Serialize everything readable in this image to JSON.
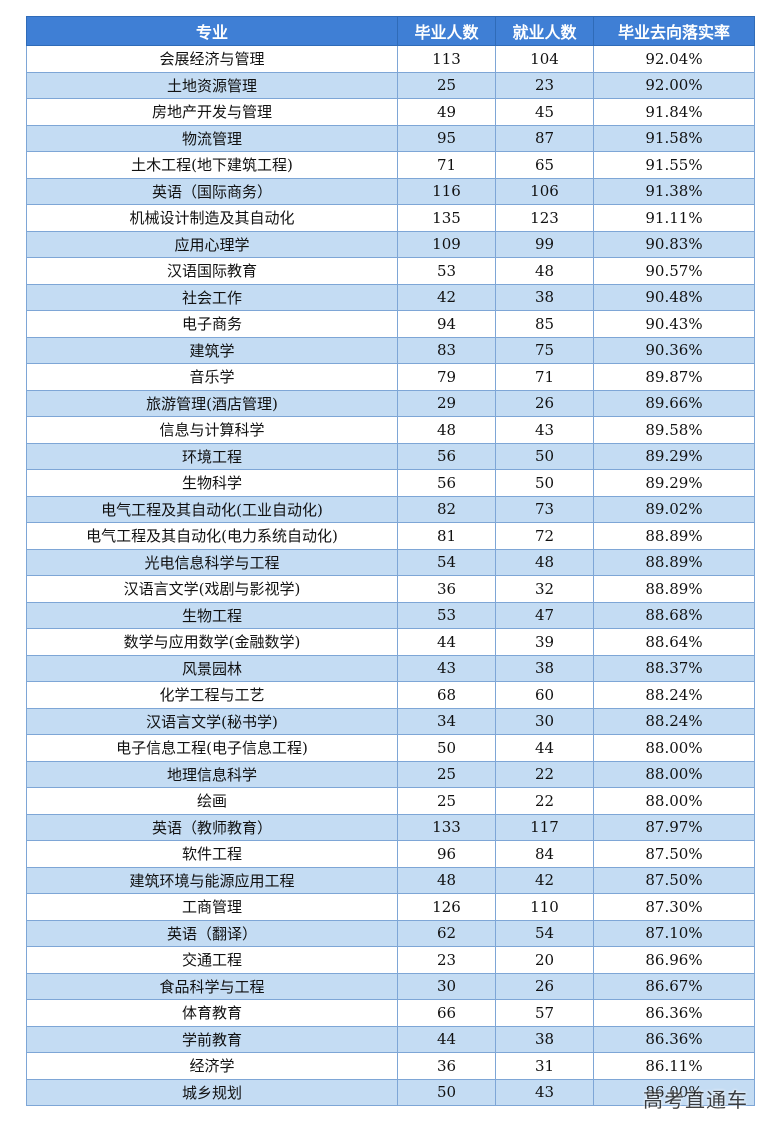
{
  "table": {
    "headers": [
      "专业",
      "毕业人数",
      "就业人数",
      "毕业去向落实率"
    ],
    "rows": [
      [
        "会展经济与管理",
        "113",
        "104",
        "92.04%"
      ],
      [
        "土地资源管理",
        "25",
        "23",
        "92.00%"
      ],
      [
        "房地产开发与管理",
        "49",
        "45",
        "91.84%"
      ],
      [
        "物流管理",
        "95",
        "87",
        "91.58%"
      ],
      [
        "土木工程(地下建筑工程)",
        "71",
        "65",
        "91.55%"
      ],
      [
        "英语（国际商务）",
        "116",
        "106",
        "91.38%"
      ],
      [
        "机械设计制造及其自动化",
        "135",
        "123",
        "91.11%"
      ],
      [
        "应用心理学",
        "109",
        "99",
        "90.83%"
      ],
      [
        "汉语国际教育",
        "53",
        "48",
        "90.57%"
      ],
      [
        "社会工作",
        "42",
        "38",
        "90.48%"
      ],
      [
        "电子商务",
        "94",
        "85",
        "90.43%"
      ],
      [
        "建筑学",
        "83",
        "75",
        "90.36%"
      ],
      [
        "音乐学",
        "79",
        "71",
        "89.87%"
      ],
      [
        "旅游管理(酒店管理)",
        "29",
        "26",
        "89.66%"
      ],
      [
        "信息与计算科学",
        "48",
        "43",
        "89.58%"
      ],
      [
        "环境工程",
        "56",
        "50",
        "89.29%"
      ],
      [
        "生物科学",
        "56",
        "50",
        "89.29%"
      ],
      [
        "电气工程及其自动化(工业自动化)",
        "82",
        "73",
        "89.02%"
      ],
      [
        "电气工程及其自动化(电力系统自动化)",
        "81",
        "72",
        "88.89%"
      ],
      [
        "光电信息科学与工程",
        "54",
        "48",
        "88.89%"
      ],
      [
        "汉语言文学(戏剧与影视学)",
        "36",
        "32",
        "88.89%"
      ],
      [
        "生物工程",
        "53",
        "47",
        "88.68%"
      ],
      [
        "数学与应用数学(金融数学)",
        "44",
        "39",
        "88.64%"
      ],
      [
        "风景园林",
        "43",
        "38",
        "88.37%"
      ],
      [
        "化学工程与工艺",
        "68",
        "60",
        "88.24%"
      ],
      [
        "汉语言文学(秘书学)",
        "34",
        "30",
        "88.24%"
      ],
      [
        "电子信息工程(电子信息工程)",
        "50",
        "44",
        "88.00%"
      ],
      [
        "地理信息科学",
        "25",
        "22",
        "88.00%"
      ],
      [
        "绘画",
        "25",
        "22",
        "88.00%"
      ],
      [
        "英语（教师教育）",
        "133",
        "117",
        "87.97%"
      ],
      [
        "软件工程",
        "96",
        "84",
        "87.50%"
      ],
      [
        "建筑环境与能源应用工程",
        "48",
        "42",
        "87.50%"
      ],
      [
        "工商管理",
        "126",
        "110",
        "87.30%"
      ],
      [
        "英语（翻译）",
        "62",
        "54",
        "87.10%"
      ],
      [
        "交通工程",
        "23",
        "20",
        "86.96%"
      ],
      [
        "食品科学与工程",
        "30",
        "26",
        "86.67%"
      ],
      [
        "体育教育",
        "66",
        "57",
        "86.36%"
      ],
      [
        "学前教育",
        "44",
        "38",
        "86.36%"
      ],
      [
        "经济学",
        "36",
        "31",
        "86.11%"
      ],
      [
        "城乡规划",
        "50",
        "43",
        "86.00%"
      ]
    ]
  },
  "watermark": "高考直通车"
}
